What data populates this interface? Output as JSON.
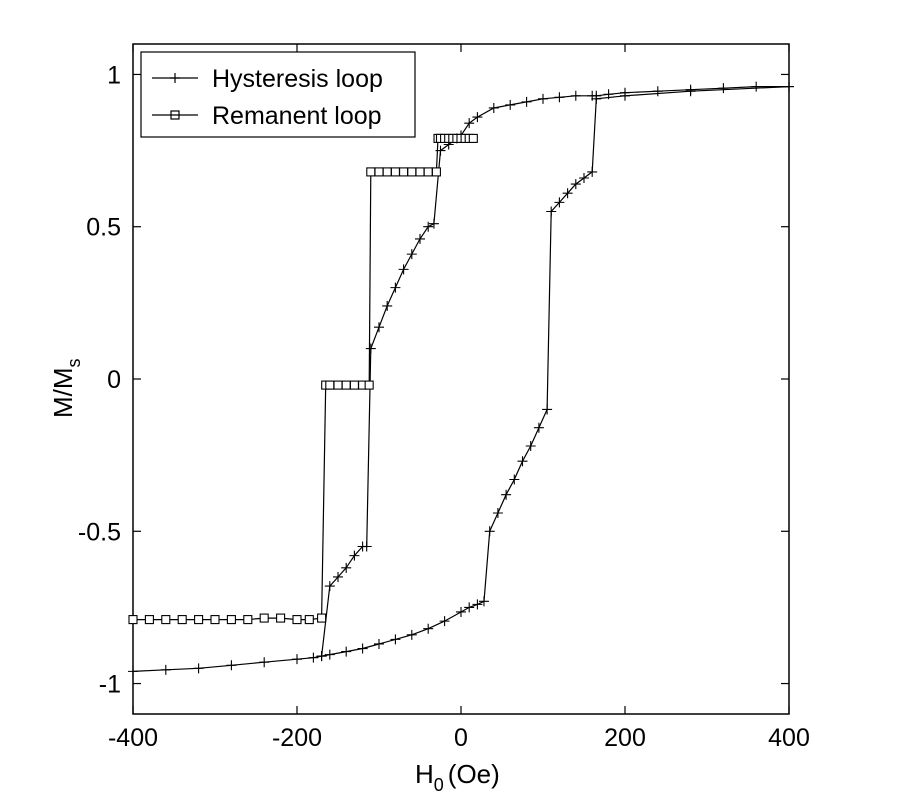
{
  "chart_data": {
    "type": "line",
    "title": "",
    "xlabel": {
      "main": "H",
      "sub": "0",
      "unit": "(Oe)"
    },
    "ylabel": {
      "main": "M/M",
      "sub": "s"
    },
    "xlim": [
      -400,
      400
    ],
    "ylim": [
      -1.1,
      1.1
    ],
    "xticks": [
      -400,
      -200,
      0,
      200,
      400
    ],
    "yticks": [
      -1,
      -0.5,
      0,
      0.5,
      1
    ],
    "xtick_labels": [
      "-400",
      "-200",
      "0",
      "200",
      "400"
    ],
    "ytick_labels": [
      "-1",
      "-0.5",
      "0",
      "0.5",
      "1"
    ],
    "grid": false,
    "legend_position": "top-left",
    "series": [
      {
        "name": "Hysteresis loop",
        "marker": "plus",
        "branches": [
          {
            "x": [
              -400,
              -360,
              -320,
              -280,
              -240,
              -200,
              -180,
              -170,
              -160,
              -150,
              -140,
              -130,
              -120,
              -115,
              -110,
              -100,
              -90,
              -80,
              -70,
              -60,
              -50,
              -40,
              -33,
              -25,
              -15,
              -5,
              0,
              10,
              20,
              40,
              60,
              80,
              100,
              120,
              140,
              160,
              165,
              180,
              200,
              240,
              280,
              320,
              360,
              400
            ],
            "y": [
              -0.96,
              -0.955,
              -0.95,
              -0.94,
              -0.93,
              -0.92,
              -0.915,
              -0.91,
              -0.68,
              -0.65,
              -0.62,
              -0.58,
              -0.55,
              -0.55,
              0.1,
              0.17,
              0.24,
              0.3,
              0.36,
              0.41,
              0.46,
              0.5,
              0.51,
              0.75,
              0.77,
              0.79,
              0.8,
              0.84,
              0.86,
              0.89,
              0.9,
              0.91,
              0.92,
              0.925,
              0.93,
              0.93,
              0.93,
              0.935,
              0.94,
              0.945,
              0.95,
              0.955,
              0.96,
              0.96
            ]
          },
          {
            "x": [
              -170,
              -160,
              -140,
              -120,
              -100,
              -80,
              -60,
              -40,
              -20,
              0,
              10,
              20,
              28,
              35,
              45,
              55,
              65,
              75,
              85,
              95,
              105,
              110,
              120,
              130,
              140,
              150,
              160,
              165,
              200,
              280,
              400
            ],
            "y": [
              -0.91,
              -0.905,
              -0.895,
              -0.885,
              -0.87,
              -0.855,
              -0.84,
              -0.82,
              -0.795,
              -0.765,
              -0.75,
              -0.74,
              -0.73,
              -0.5,
              -0.44,
              -0.38,
              -0.33,
              -0.27,
              -0.22,
              -0.16,
              -0.1,
              0.55,
              0.58,
              0.61,
              0.64,
              0.66,
              0.68,
              0.92,
              0.93,
              0.945,
              0.96
            ]
          }
        ]
      },
      {
        "name": "Remanent loop",
        "marker": "square",
        "x": [
          -400,
          -380,
          -360,
          -340,
          -320,
          -300,
          -280,
          -260,
          -240,
          -220,
          -200,
          -185,
          -170,
          -165,
          -160,
          -150,
          -140,
          -130,
          -120,
          -112,
          -110,
          -100,
          -90,
          -80,
          -70,
          -60,
          -50,
          -40,
          -30,
          -28,
          -25,
          -20,
          -15,
          -10,
          -5,
          0,
          5,
          10,
          15
        ],
        "y": [
          -0.79,
          -0.79,
          -0.79,
          -0.79,
          -0.79,
          -0.79,
          -0.79,
          -0.79,
          -0.785,
          -0.785,
          -0.79,
          -0.79,
          -0.785,
          -0.02,
          -0.02,
          -0.02,
          -0.02,
          -0.02,
          -0.02,
          -0.02,
          0.68,
          0.68,
          0.68,
          0.68,
          0.68,
          0.68,
          0.68,
          0.68,
          0.68,
          0.79,
          0.79,
          0.79,
          0.79,
          0.79,
          0.79,
          0.79,
          0.79,
          0.79,
          0.79
        ]
      }
    ]
  }
}
